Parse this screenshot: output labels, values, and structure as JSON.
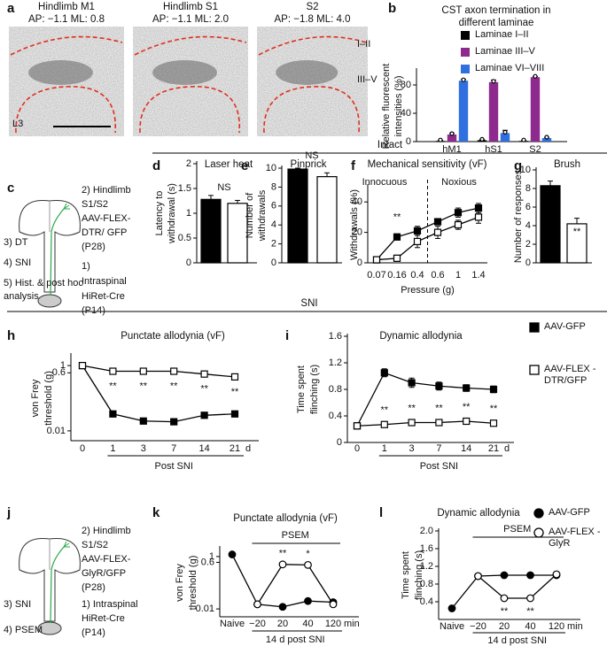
{
  "panel_letters": [
    "a",
    "b",
    "c",
    "d",
    "e",
    "f",
    "g",
    "h",
    "i",
    "j",
    "k",
    "l"
  ],
  "sections": [
    "Intact",
    "SNI"
  ],
  "images": [
    {
      "title": "Hindlimb M1",
      "coords": "AP: −1.1  ML: 0.8"
    },
    {
      "title": "Hindlimb S1",
      "coords": "AP: −1.1  ML: 2.0"
    },
    {
      "title": "S2",
      "coords": "AP: −1.8  ML: 4.0"
    }
  ],
  "image_annotations": [
    "I–II",
    "III–V",
    "L3"
  ],
  "schematics": [
    {
      "right": [
        "2) Hindlimb",
        "S1/S2",
        "AAV-FLEX-",
        "DTR/ GFP",
        "(P28)",
        "1)",
        "Intraspinal",
        "HiRet-Cre",
        "(P14)"
      ],
      "left": [
        "3) DT",
        "4) SNI",
        "5) Hist. & post hoc",
        "analysis"
      ]
    },
    {
      "right": [
        "2) Hindlimb",
        "S1/S2",
        "AAV-FLEX-",
        "GlyR/GFP",
        "(P28)",
        "1) Intraspinal",
        "HiRet-Cre",
        "(P14)"
      ],
      "left": [
        "3) SNI",
        "4) PSEM"
      ]
    }
  ],
  "chart_data": [
    {
      "type": "bar",
      "title": [
        "CST axon termination in",
        "different laminae"
      ],
      "ylabel": [
        "Relative fluorescent",
        "intensities (%)"
      ],
      "categories": [
        "hM1",
        "hS1",
        "S2"
      ],
      "series": [
        {
          "name": "Laminae I–II",
          "color": "#000000",
          "values": [
            1,
            2,
            1
          ],
          "errors": [
            0.5,
            0.5,
            0.5
          ]
        },
        {
          "name": "Laminae III–V",
          "color": "#8e2a8e",
          "values": [
            10,
            84,
            91
          ],
          "errors": [
            2,
            3,
            1
          ]
        },
        {
          "name": "Laminae VI–VIII",
          "color": "#2f6fe0",
          "values": [
            86,
            12,
            5
          ],
          "errors": [
            2,
            4,
            1
          ]
        }
      ],
      "ylim": [
        0,
        100
      ],
      "yticks": [
        0,
        40,
        80
      ],
      "legend": "upper right"
    },
    {
      "type": "bar",
      "title": "Laser heat",
      "ylabel": [
        "Latency to",
        "withdrawal (s)"
      ],
      "values": [
        1.28,
        1.2
      ],
      "errors": [
        0.08,
        0.06
      ],
      "colors": [
        "#000000",
        "#ffffff"
      ],
      "ylim": [
        0,
        2
      ],
      "yticks": [
        0,
        0.5,
        1,
        1.5,
        2
      ],
      "significance": "NS"
    },
    {
      "type": "bar",
      "title": "Pinprick",
      "ylabel": [
        "Number of",
        "withdrawals"
      ],
      "values": [
        9.9,
        9.1
      ],
      "errors": [
        0.1,
        0.4
      ],
      "colors": [
        "#000000",
        "#ffffff"
      ],
      "ylim": [
        0,
        10
      ],
      "yticks": [
        0,
        2,
        4,
        6,
        8,
        10
      ],
      "significance": "NS"
    },
    {
      "type": "line",
      "title": "Mechanical sensitivity (vF)",
      "ylabel": [
        "Withdrawals (%)"
      ],
      "xlabel": "Pressure (g)",
      "categories": [
        "0.07",
        "0.16",
        "0.4",
        "0.6",
        "1",
        "1.4"
      ],
      "series": [
        {
          "color": "#000000",
          "filled": true,
          "marker": "square",
          "values": [
            2,
            17,
            21,
            27,
            33,
            36
          ],
          "errors": [
            1,
            2,
            3,
            2,
            3,
            3
          ]
        },
        {
          "color": "#000000",
          "filled": false,
          "marker": "square",
          "values": [
            2,
            3,
            14,
            20,
            25,
            30
          ],
          "errors": [
            1,
            2,
            4,
            4,
            3,
            4
          ]
        }
      ],
      "ylim": [
        0,
        50
      ],
      "yticks": [
        0,
        20,
        40
      ],
      "significance": [
        null,
        "**",
        null,
        null,
        null,
        null
      ],
      "regions": [
        "Innocuous",
        "Noxious"
      ]
    },
    {
      "type": "bar",
      "title": "Brush",
      "ylabel": [
        "Number of responses"
      ],
      "values": [
        8.3,
        4.2
      ],
      "errors": [
        0.5,
        0.6
      ],
      "colors": [
        "#000000",
        "#ffffff"
      ],
      "ylim": [
        0,
        10
      ],
      "yticks": [
        0,
        2,
        4,
        6,
        8,
        10
      ],
      "significance": "**"
    },
    {
      "type": "line",
      "title": "Punctate allodynia (vF)",
      "ylabel": [
        "von Frey",
        "threshold (g)"
      ],
      "xlabel": "Post SNI",
      "x_unit": "d",
      "categories": [
        "0",
        "1",
        "3",
        "7",
        "14",
        "21"
      ],
      "log_scale": true,
      "ylim": [
        0.005,
        2
      ],
      "yticks": [
        0.01,
        0.6,
        1
      ],
      "series": [
        {
          "color": "#000000",
          "filled": true,
          "marker": "square",
          "values": [
            1,
            0.033,
            0.02,
            0.019,
            0.03,
            0.033
          ]
        },
        {
          "color": "#000000",
          "filled": false,
          "marker": "square",
          "values": [
            1,
            0.67,
            0.67,
            0.67,
            0.55,
            0.45
          ]
        }
      ],
      "significance": [
        null,
        "**",
        "**",
        "**",
        "**",
        "**"
      ]
    },
    {
      "type": "line",
      "title": "Dynamic allodynia",
      "ylabel": [
        "Time spent",
        "flinching (s)"
      ],
      "xlabel": "Post SNI",
      "x_unit": "d",
      "categories": [
        "0",
        "1",
        "3",
        "7",
        "14",
        "21"
      ],
      "ylim": [
        0,
        1.6
      ],
      "yticks": [
        0,
        0.4,
        0.8,
        1.2,
        1.6
      ],
      "series": [
        {
          "name": "AAV-GFP",
          "color": "#000000",
          "filled": true,
          "marker": "square",
          "values": [
            0.25,
            1.05,
            0.9,
            0.85,
            0.82,
            0.8
          ],
          "errors": [
            0.03,
            0.06,
            0.07,
            0.06,
            0.05,
            0.05
          ]
        },
        {
          "name": "AAV-FLEX -DTR/GFP",
          "color": "#000000",
          "filled": false,
          "marker": "square",
          "values": [
            0.25,
            0.27,
            0.3,
            0.3,
            0.32,
            0.29
          ],
          "errors": [
            0.03,
            0.03,
            0.03,
            0.03,
            0.03,
            0.03
          ]
        }
      ],
      "significance": [
        null,
        "**",
        "**",
        "**",
        "**",
        "**"
      ],
      "legend": "right"
    },
    {
      "type": "line",
      "title": "Punctate allodynia (vF)",
      "ylabel": [
        "von Frey",
        "threshold (g)"
      ],
      "xlabel": "14 d post SNI",
      "x_unit": "min",
      "categories": [
        "Naive",
        "−20",
        "20",
        "40",
        "120"
      ],
      "log_scale": true,
      "ylim": [
        0.005,
        2
      ],
      "yticks": [
        0.01,
        0.6,
        1
      ],
      "series": [
        {
          "color": "#000000",
          "filled": true,
          "marker": "circle",
          "values": [
            1.2,
            0.015,
            0.012,
            0.02,
            0.018
          ]
        },
        {
          "color": "#000000",
          "filled": false,
          "marker": "circle",
          "values": [
            null,
            0.015,
            0.5,
            0.48,
            0.015
          ]
        }
      ],
      "significance": [
        null,
        null,
        "**",
        "*",
        null
      ],
      "bracket_label": "PSEM"
    },
    {
      "type": "line",
      "title": "Dynamic allodynia",
      "ylabel": [
        "Time spent",
        "flinching (s)"
      ],
      "xlabel": "14 d post SNI",
      "x_unit": "min",
      "categories": [
        "Naive",
        "−20",
        "20",
        "40",
        "120"
      ],
      "ylim": [
        0,
        2
      ],
      "yticks": [
        0.4,
        0.8,
        1.2,
        1.6,
        {
          "value": 2,
          "label": "2.0"
        }
      ],
      "series": [
        {
          "name": "AAV-GFP",
          "color": "#000000",
          "filled": true,
          "marker": "circle",
          "values": [
            0.25,
            0.98,
            1.0,
            1.0,
            1.0
          ],
          "errors": [
            0.02,
            0.05,
            0.05,
            0.05,
            0.05
          ]
        },
        {
          "name": "AAV-FLEX -GlyR",
          "color": "#000000",
          "filled": false,
          "marker": "circle",
          "values": [
            null,
            0.98,
            0.48,
            0.48,
            1.02
          ],
          "errors": [
            null,
            0.05,
            0.05,
            0.05,
            0.06
          ]
        }
      ],
      "significance": [
        null,
        null,
        "**",
        "**",
        null
      ],
      "bracket_label": "PSEM",
      "legend": "upper right"
    }
  ]
}
